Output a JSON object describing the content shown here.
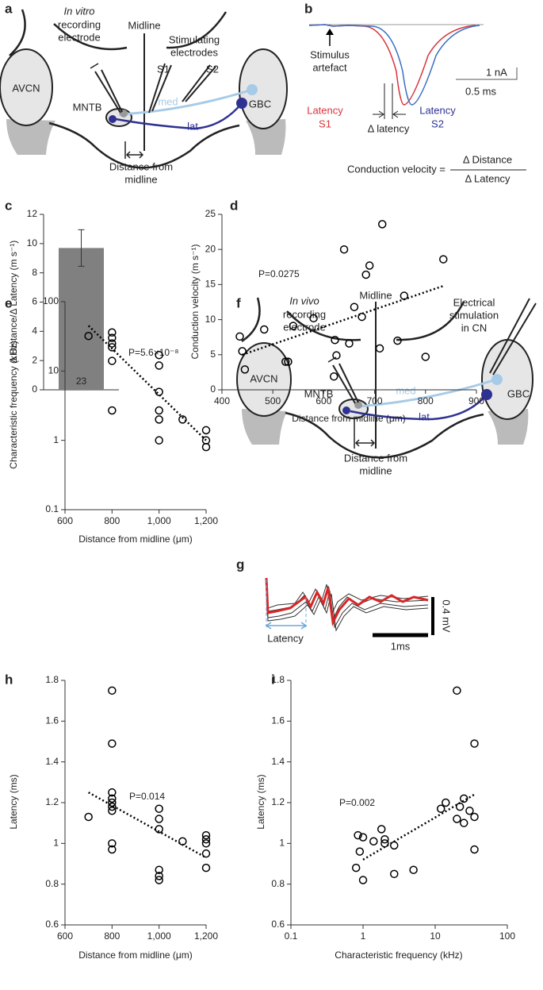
{
  "panel_labels": [
    "a",
    "b",
    "c",
    "d",
    "e",
    "f",
    "g",
    "h",
    "i"
  ],
  "diagram_a": {
    "labels": [
      "In vitro",
      "recording",
      "electrode",
      "Midline",
      "Stimulating",
      "electrodes",
      "S1",
      "S2",
      "AVCN",
      "MNTB",
      "med",
      "lat",
      "GBC",
      "Distance from",
      "midline"
    ]
  },
  "diagram_b": {
    "labels": [
      "Stimulus",
      "artefact",
      "1 nA",
      "0.5 ms",
      "Latency",
      "S1",
      "Latency",
      "S2",
      "Δ latency",
      "Conduction velocity =",
      "Δ Distance",
      "Δ Latency"
    ]
  },
  "diagram_f": {
    "labels": [
      "In vivo",
      "recording",
      "electrode",
      "Midline",
      "Electrical",
      "stimulation",
      "in CN",
      "AVCN",
      "MNTB",
      "med",
      "lat",
      "GBC",
      "Distance from",
      "midline"
    ]
  },
  "trace_g": {
    "labels": [
      "Latency",
      "0.4 mV",
      "1ms"
    ]
  },
  "chart_data": [
    {
      "type": "bar",
      "ylabel": "Δ Distance/Δ Latency (m s⁻¹)",
      "categories": [
        null
      ],
      "values": [
        9.7
      ],
      "errors": [
        1.25
      ],
      "bar_label": "23",
      "color": "#808080",
      "ylim": [
        0,
        12
      ],
      "yticks": [
        0,
        2,
        4,
        6,
        8,
        10,
        12
      ]
    },
    {
      "type": "scatter",
      "xlabel": "Distance from midline (μm)",
      "ylabel": "Conduction velocity (m s⁻¹)",
      "annotation": "P=0.0275",
      "color": "#000000",
      "x": [
        435,
        440,
        445,
        483,
        525,
        530,
        540,
        580,
        620,
        622,
        625,
        640,
        650,
        660,
        675,
        683,
        690,
        710,
        715,
        745,
        758,
        800,
        835
      ],
      "values": [
        7.6,
        5.5,
        2.9,
        8.6,
        4.0,
        4.0,
        9.1,
        10.2,
        1.9,
        7.1,
        4.9,
        20.0,
        6.6,
        11.8,
        10.4,
        16.4,
        17.7,
        5.9,
        23.6,
        7.0,
        13.4,
        4.7,
        18.6
      ],
      "fit": {
        "x": [
          440,
          835
        ],
        "values": [
          5.0,
          14.8
        ]
      },
      "xlim": [
        400,
        900
      ],
      "xticks": [
        400,
        500,
        600,
        700,
        800,
        900
      ],
      "ylim": [
        0,
        25
      ],
      "yticks": [
        0,
        5,
        10,
        15,
        20,
        25
      ]
    },
    {
      "type": "scatter",
      "xlabel": "Distance from midline (μm)",
      "ylabel": "Characteristic frequency (kHz)",
      "annotation": "P=5.6×10⁻⁸",
      "yscale": "log",
      "color": "#000000",
      "x": [
        700,
        800,
        800,
        800,
        800,
        800,
        800,
        1000,
        1000,
        1000,
        1000,
        1000,
        1000,
        1100,
        1200,
        1200,
        1200
      ],
      "values": [
        32,
        36,
        30,
        25,
        22,
        14,
        2.7,
        17,
        12,
        5,
        2.7,
        2,
        1,
        2,
        1.4,
        1,
        0.8
      ],
      "fit": {
        "x": [
          700,
          1200
        ],
        "values": [
          45,
          1
        ]
      },
      "xlim": [
        600,
        1200
      ],
      "xticks": [
        600,
        800,
        {
          "value": 1000,
          "label": "1,000"
        },
        {
          "value": 1200,
          "label": "1,200"
        }
      ],
      "ylim": [
        0.1,
        100
      ],
      "yticks": [
        0.1,
        1,
        10,
        100
      ]
    },
    {
      "type": "scatter",
      "xlabel": "Distance from midline (μm)",
      "ylabel": "Latency (ms)",
      "annotation": "P=0.014",
      "color": "#000000",
      "x": [
        700,
        800,
        800,
        800,
        800,
        800,
        800,
        800,
        800,
        800,
        1000,
        1000,
        1000,
        1000,
        1000,
        1000,
        1100,
        1200,
        1200,
        1200,
        1200,
        1200
      ],
      "values": [
        1.13,
        1.75,
        1.49,
        1.25,
        1.22,
        1.2,
        1.18,
        1.16,
        1.0,
        0.97,
        1.17,
        1.12,
        1.07,
        0.87,
        0.84,
        0.82,
        1.01,
        1.04,
        1.02,
        1.0,
        0.95,
        0.88
      ],
      "fit": {
        "x": [
          700,
          1200
        ],
        "values": [
          1.25,
          0.93
        ]
      },
      "xlim": [
        600,
        1200
      ],
      "xticks": [
        600,
        800,
        {
          "value": 1000,
          "label": "1,000"
        },
        {
          "value": 1200,
          "label": "1,200"
        }
      ],
      "ylim": [
        0.6,
        1.8
      ],
      "yticks": [
        0.6,
        0.8,
        1,
        1.2,
        1.4,
        1.6,
        1.8
      ]
    },
    {
      "type": "scatter",
      "xlabel": "Characteristic frequency (kHz)",
      "ylabel": "Latency (ms)",
      "annotation": "P=0.002",
      "xscale": "log",
      "color": "#000000",
      "x": [
        0.85,
        0.9,
        0.8,
        1.0,
        1.0,
        1.4,
        1.8,
        2,
        2,
        2.7,
        2.7,
        5,
        12,
        14,
        20,
        20,
        22,
        25,
        25,
        30,
        35,
        35,
        35
      ],
      "values": [
        1.04,
        0.96,
        0.88,
        1.03,
        0.82,
        1.01,
        1.07,
        1.02,
        1.0,
        0.99,
        0.85,
        0.87,
        1.17,
        1.2,
        1.75,
        1.12,
        1.18,
        1.22,
        1.1,
        1.16,
        1.49,
        1.13,
        0.97
      ],
      "fit": {
        "x": [
          1,
          35
        ],
        "values": [
          0.92,
          1.24
        ]
      },
      "xlim": [
        0.1,
        100
      ],
      "xticks": [
        0.1,
        1,
        10,
        100
      ],
      "ylim": [
        0.6,
        1.8
      ],
      "yticks": [
        0.6,
        0.8,
        1,
        1.2,
        1.4,
        1.6,
        1.8
      ]
    }
  ]
}
